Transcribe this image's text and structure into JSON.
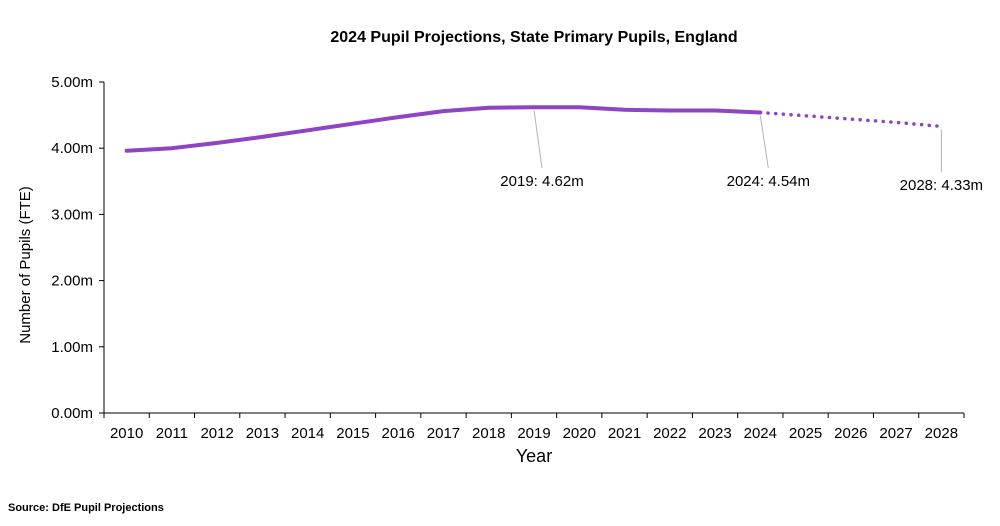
{
  "chart_data": {
    "type": "line",
    "title": "2024 Pupil Projections, State Primary Pupils, England",
    "xlabel": "Year",
    "ylabel": "Number of Pupils (FTE)",
    "ylim": [
      0,
      5
    ],
    "y_ticks": [
      0,
      1,
      2,
      3,
      4,
      5
    ],
    "y_tick_labels": [
      "0.00m",
      "1.00m",
      "2.00m",
      "3.00m",
      "4.00m",
      "5.00m"
    ],
    "categories": [
      "2010",
      "2011",
      "2012",
      "2013",
      "2014",
      "2015",
      "2016",
      "2017",
      "2018",
      "2019",
      "2020",
      "2021",
      "2022",
      "2023",
      "2024",
      "2025",
      "2026",
      "2027",
      "2028"
    ],
    "series": [
      {
        "style": "solid",
        "x": [
          "2010",
          "2011",
          "2012",
          "2013",
          "2014",
          "2015",
          "2016",
          "2017",
          "2018",
          "2019",
          "2020",
          "2021",
          "2022",
          "2023",
          "2024"
        ],
        "values": [
          3.96,
          4.0,
          4.08,
          4.17,
          4.27,
          4.37,
          4.47,
          4.56,
          4.61,
          4.62,
          4.62,
          4.58,
          4.57,
          4.57,
          4.54
        ]
      },
      {
        "style": "dotted",
        "x": [
          "2024",
          "2025",
          "2026",
          "2027",
          "2028"
        ],
        "values": [
          4.54,
          4.49,
          4.44,
          4.39,
          4.33
        ]
      }
    ],
    "annotations": [
      {
        "x": "2019",
        "value": 4.62,
        "text": "2019: 4.62m"
      },
      {
        "x": "2024",
        "value": 4.54,
        "text": "2024: 4.54m"
      },
      {
        "x": "2028",
        "value": 4.33,
        "text": "2028: 4.33m"
      }
    ],
    "line_color": "#8e44c3",
    "grid": false
  },
  "source": "Source: DfE Pupil Projections"
}
